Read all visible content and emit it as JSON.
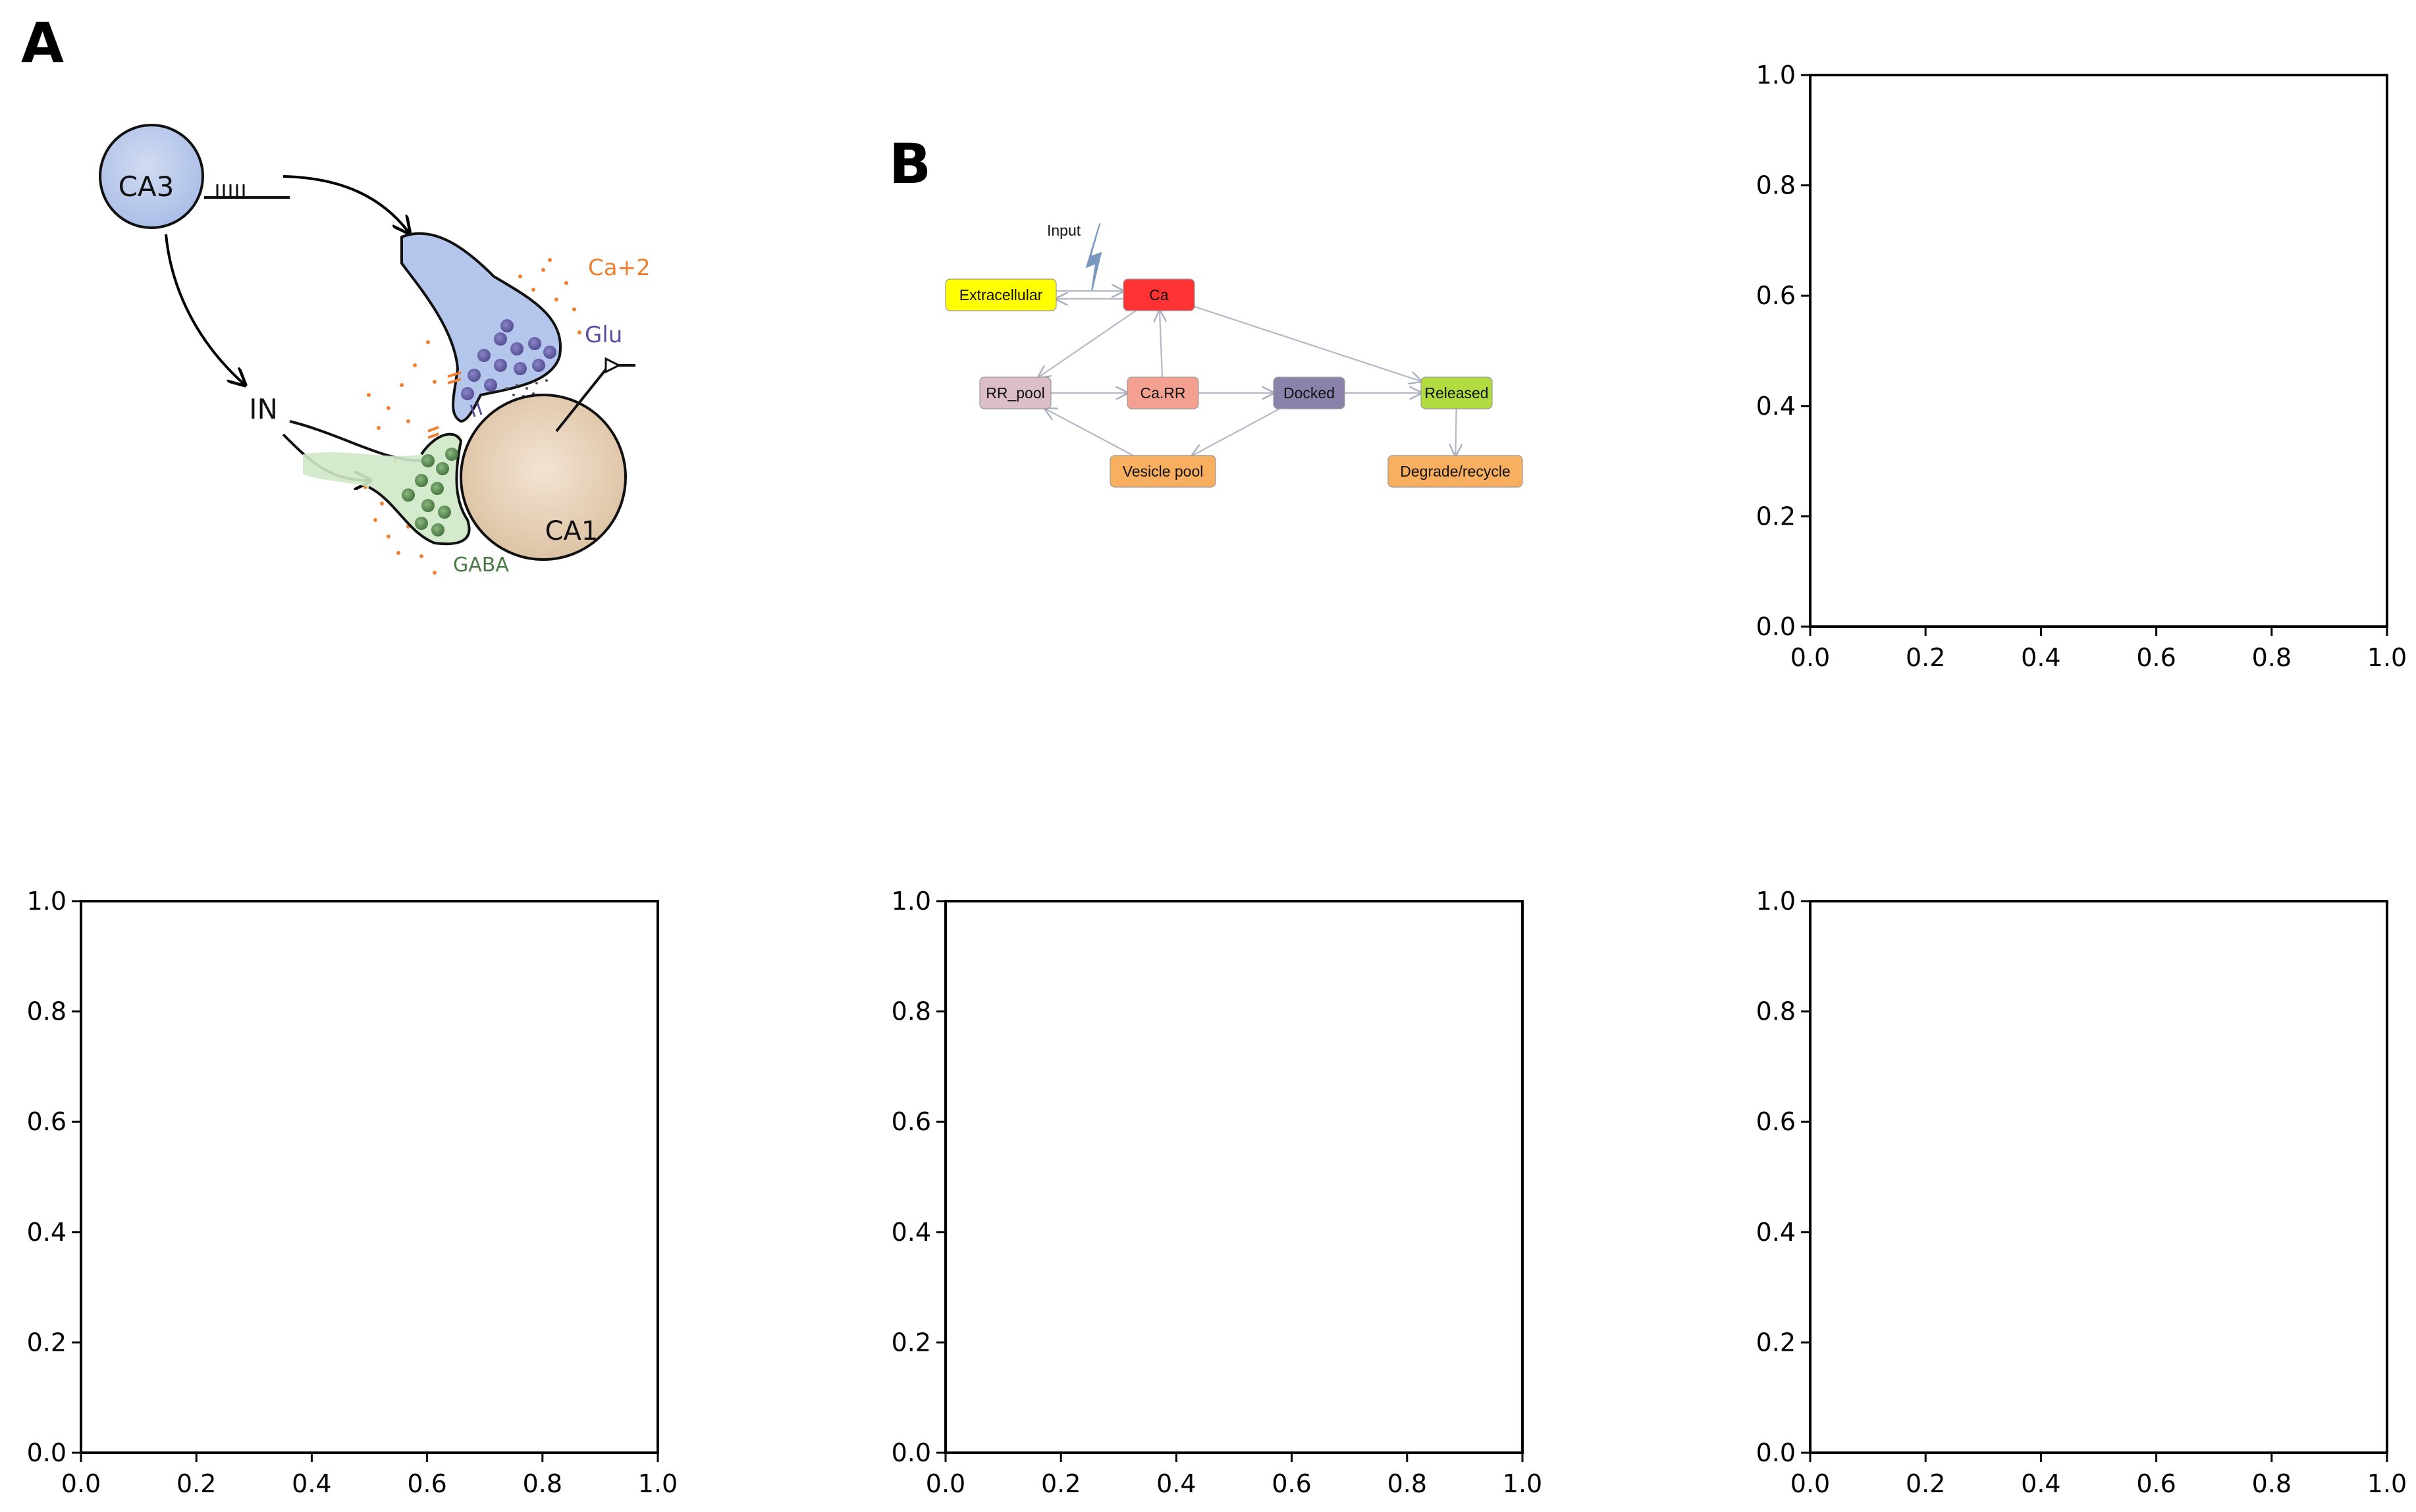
{
  "panels": {
    "a": {
      "letter": "A"
    },
    "b": {
      "letter": "B"
    }
  },
  "sketch": {
    "ca3": "CA3",
    "in": "IN",
    "ca1": "CA1",
    "ca2": "Ca+2",
    "glu": "Glu",
    "gaba": "GABA"
  },
  "diagram": {
    "input_label": "Input",
    "nodes": [
      {
        "id": "extracellular",
        "label": "Extracellular",
        "fill": "#ffff00"
      },
      {
        "id": "ca",
        "label": "Ca",
        "fill": "#ff3333"
      },
      {
        "id": "rr_pool",
        "label": "RR_pool",
        "fill": "#dcbec8"
      },
      {
        "id": "ca_rr",
        "label": "Ca.RR",
        "fill": "#f4a090"
      },
      {
        "id": "docked",
        "label": "Docked",
        "fill": "#8a82aa"
      },
      {
        "id": "released",
        "label": "Released",
        "fill": "#b0dc40"
      },
      {
        "id": "vesicle_pool",
        "label": "Vesicle pool",
        "fill": "#f8b060"
      },
      {
        "id": "degrade",
        "label": "Degrade/recycle",
        "fill": "#f8b060"
      }
    ],
    "edges": [
      [
        "extracellular",
        "ca"
      ],
      [
        "ca",
        "extracellular"
      ],
      [
        "ca",
        "rr_pool"
      ],
      [
        "ca",
        "released"
      ],
      [
        "rr_pool",
        "ca_rr"
      ],
      [
        "ca_rr",
        "docked"
      ],
      [
        "ca_rr",
        "ca"
      ],
      [
        "docked",
        "released"
      ],
      [
        "docked",
        "vesicle_pool"
      ],
      [
        "vesicle_pool",
        "rr_pool"
      ],
      [
        "released",
        "degrade"
      ]
    ]
  },
  "chart_data": [
    {
      "type": "scatter",
      "title": "",
      "xlabel": "",
      "ylabel": "",
      "xlim": [
        0,
        1
      ],
      "ylim": [
        0,
        1
      ],
      "xticks": [
        "0.0",
        "0.2",
        "0.4",
        "0.6",
        "0.8",
        "1.0"
      ],
      "yticks": [
        "0.0",
        "0.2",
        "0.4",
        "0.6",
        "0.8",
        "1.0"
      ],
      "series": []
    },
    {
      "type": "scatter",
      "title": "",
      "xlabel": "",
      "ylabel": "",
      "xlim": [
        0,
        1
      ],
      "ylim": [
        0,
        1
      ],
      "xticks": [
        "0.0",
        "0.2",
        "0.4",
        "0.6",
        "0.8",
        "1.0"
      ],
      "yticks": [
        "0.0",
        "0.2",
        "0.4",
        "0.6",
        "0.8",
        "1.0"
      ],
      "series": []
    },
    {
      "type": "scatter",
      "title": "",
      "xlabel": "",
      "ylabel": "",
      "xlim": [
        0,
        1
      ],
      "ylim": [
        0,
        1
      ],
      "xticks": [
        "0.0",
        "0.2",
        "0.4",
        "0.6",
        "0.8",
        "1.0"
      ],
      "yticks": [
        "0.0",
        "0.2",
        "0.4",
        "0.6",
        "0.8",
        "1.0"
      ],
      "series": []
    },
    {
      "type": "scatter",
      "title": "",
      "xlabel": "",
      "ylabel": "",
      "xlim": [
        0,
        1
      ],
      "ylim": [
        0,
        1
      ],
      "xticks": [
        "0.0",
        "0.2",
        "0.4",
        "0.6",
        "0.8",
        "1.0"
      ],
      "yticks": [
        "0.0",
        "0.2",
        "0.4",
        "0.6",
        "0.8",
        "1.0"
      ],
      "series": []
    }
  ]
}
